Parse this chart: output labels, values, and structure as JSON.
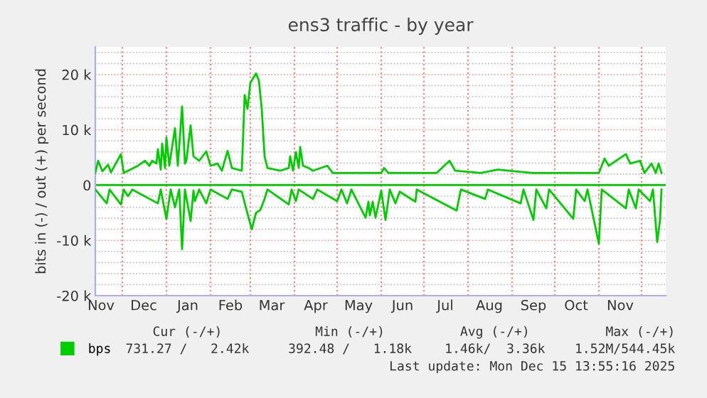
{
  "chart_data": {
    "type": "line",
    "title": "ens3 traffic - by year",
    "ylabel": "bits in (-) / out (+) per second",
    "xlim": [
      "2024-11-12",
      "2025-12-18"
    ],
    "ylim": [
      -20000,
      25000
    ],
    "xticks": [
      {
        "value": "2024-11-16",
        "label": "Nov"
      },
      {
        "value": "2024-12-16",
        "label": "Dec"
      },
      {
        "value": "2025-01-16",
        "label": "Jan"
      },
      {
        "value": "2025-02-15",
        "label": "Feb"
      },
      {
        "value": "2025-03-16",
        "label": "Mar"
      },
      {
        "value": "2025-04-16",
        "label": "Apr"
      },
      {
        "value": "2025-05-16",
        "label": "May"
      },
      {
        "value": "2025-06-16",
        "label": "Jun"
      },
      {
        "value": "2025-07-16",
        "label": "Jul"
      },
      {
        "value": "2025-08-16",
        "label": "Aug"
      },
      {
        "value": "2025-09-16",
        "label": "Sep"
      },
      {
        "value": "2025-10-16",
        "label": "Oct"
      },
      {
        "value": "2025-11-16",
        "label": "Nov"
      }
    ],
    "yticks": [
      {
        "value": -20000,
        "label": "-20 k"
      },
      {
        "value": -18000,
        "label": null
      },
      {
        "value": -16000,
        "label": null
      },
      {
        "value": -14000,
        "label": null
      },
      {
        "value": -12000,
        "label": null
      },
      {
        "value": -10000,
        "label": "-10 k"
      },
      {
        "value": -8000,
        "label": null
      },
      {
        "value": -6000,
        "label": null
      },
      {
        "value": -4000,
        "label": null
      },
      {
        "value": -2000,
        "label": null
      },
      0,
      {
        "value": 2000,
        "label": null
      },
      {
        "value": 4000,
        "label": null
      },
      {
        "value": 6000,
        "label": null
      },
      {
        "value": 8000,
        "label": null
      },
      {
        "value": 10000,
        "label": "10 k"
      },
      {
        "value": 12000,
        "label": null
      },
      {
        "value": 14000,
        "label": null
      },
      {
        "value": 16000,
        "label": null
      },
      {
        "value": 18000,
        "label": null
      },
      {
        "value": 20000,
        "label": "20 k"
      },
      {
        "value": 22000,
        "label": null
      },
      {
        "value": 24000,
        "label": null
      }
    ],
    "grid": "y",
    "legend": "bottom left",
    "marker": "none",
    "line_style": "solid",
    "ref_lines": [
      {
        "axis": "y",
        "value": 0,
        "color": "#00cc00",
        "line_style": "solid"
      },
      {
        "axis": "x",
        "value": "2024-12-01",
        "color": "#ff8080",
        "line_style": "dotted"
      },
      {
        "axis": "x",
        "value": "2025-01-01",
        "color": "#ff8080",
        "line_style": "dotted"
      },
      {
        "axis": "x",
        "value": "2025-02-01",
        "color": "#ff8080",
        "line_style": "dotted"
      },
      {
        "axis": "x",
        "value": "2025-03-01",
        "color": "#ff8080",
        "line_style": "dotted"
      },
      {
        "axis": "x",
        "value": "2025-04-01",
        "color": "#ff8080",
        "line_style": "dotted"
      },
      {
        "axis": "x",
        "value": "2025-05-01",
        "color": "#ff8080",
        "line_style": "dotted"
      },
      {
        "axis": "x",
        "value": "2025-06-01",
        "color": "#ff8080",
        "line_style": "dotted"
      },
      {
        "axis": "x",
        "value": "2025-07-01",
        "color": "#ff8080",
        "line_style": "dotted"
      },
      {
        "axis": "x",
        "value": "2025-08-01",
        "color": "#ff8080",
        "line_style": "dotted"
      },
      {
        "axis": "x",
        "value": "2025-09-01",
        "color": "#ff8080",
        "line_style": "dotted"
      },
      {
        "axis": "x",
        "value": "2025-10-01",
        "color": "#ff8080",
        "line_style": "dotted"
      },
      {
        "axis": "x",
        "value": "2025-11-01",
        "color": "#ff8080",
        "line_style": "dotted"
      },
      {
        "axis": "x",
        "value": "2025-12-01",
        "color": "#ff8080",
        "line_style": "dotted"
      }
    ],
    "annotations": [
      "Cur (-/+)",
      "Min (-/+)",
      "Avg (-/+)",
      "Max (-/+)",
      "731.27 /   2.42k",
      "392.48 /   1.18k",
      "1.46k/  3.36k",
      "1.52M/544.45k",
      "Last update: Mon Dec 15 13:55:16 2025"
    ],
    "series": [
      {
        "name": "bps",
        "color": "#00cc00",
        "x": [
          "2024-11-12",
          "2024-11-14",
          "2024-11-17",
          "2024-11-21",
          "2024-11-23",
          "2024-11-30",
          "2024-12-02",
          "2024-12-12",
          "2024-12-17",
          "2024-12-20",
          "2024-12-22",
          "2024-12-25",
          "2024-12-26",
          "2024-12-28",
          "2024-12-29",
          "2024-12-31",
          "2025-01-01",
          "2025-01-03",
          "2025-01-07",
          "2025-01-09",
          "2025-01-12",
          "2025-01-14",
          "2025-01-15",
          "2025-01-18",
          "2025-01-20",
          "2025-01-24",
          "2025-01-29",
          "2025-02-01",
          "2025-02-06",
          "2025-02-09",
          "2025-02-13",
          "2025-02-16",
          "2025-02-23",
          "2025-02-25",
          "2025-02-27",
          "2025-03-01",
          "2025-03-05",
          "2025-03-07",
          "2025-03-09",
          "2025-03-11",
          "2025-03-13",
          "2025-03-22",
          "2025-03-28",
          "2025-03-29",
          "2025-03-31",
          "2025-04-02",
          "2025-04-04",
          "2025-04-05",
          "2025-04-07",
          "2025-04-11",
          "2025-04-14",
          "2025-04-24",
          "2025-04-28",
          "2025-05-14",
          "2025-06-01",
          "2025-06-03",
          "2025-06-06",
          "2025-07-10",
          "2025-07-19",
          "2025-07-23",
          "2025-08-10",
          "2025-08-22",
          "2025-09-15",
          "2025-10-15",
          "2025-11-01",
          "2025-11-05",
          "2025-11-08",
          "2025-11-20",
          "2025-11-23",
          "2025-11-30",
          "2025-12-03",
          "2025-12-08",
          "2025-12-11",
          "2025-12-13",
          "2025-12-15"
        ],
        "values": [
          2200,
          4400,
          2500,
          3700,
          2300,
          5600,
          2200,
          3500,
          4400,
          3500,
          4400,
          3900,
          6500,
          2800,
          7500,
          3100,
          8600,
          3500,
          10300,
          3500,
          14200,
          3900,
          4400,
          10800,
          5200,
          4400,
          6100,
          3500,
          3900,
          2600,
          6200,
          3100,
          2600,
          16300,
          13800,
          18500,
          20200,
          18900,
          13800,
          5200,
          3100,
          2600,
          3100,
          5200,
          2600,
          6000,
          3100,
          6900,
          3500,
          3100,
          2600,
          3500,
          2200,
          2200,
          2200,
          3100,
          2200,
          2200,
          4400,
          2600,
          2200,
          2800,
          2200,
          2200,
          2200,
          4800,
          3500,
          5600,
          3900,
          4400,
          2200,
          3900,
          2200,
          3900,
          2200
        ]
      },
      {
        "color": "#00cc00",
        "x": [
          "2024-11-12",
          "2024-11-20",
          "2024-11-22",
          "2024-11-30",
          "2024-12-02",
          "2024-12-05",
          "2024-12-08",
          "2024-12-26",
          "2024-12-28",
          "2025-01-01",
          "2025-01-04",
          "2025-01-07",
          "2025-01-10",
          "2025-01-12",
          "2025-01-14",
          "2025-01-18",
          "2025-01-20",
          "2025-01-21",
          "2025-01-24",
          "2025-01-29",
          "2025-02-01",
          "2025-02-13",
          "2025-02-16",
          "2025-02-23",
          "2025-02-26",
          "2025-03-02",
          "2025-03-05",
          "2025-03-08",
          "2025-03-11",
          "2025-03-13",
          "2025-03-28",
          "2025-03-30",
          "2025-04-02",
          "2025-04-04",
          "2025-04-14",
          "2025-04-17",
          "2025-05-01",
          "2025-05-04",
          "2025-05-08",
          "2025-05-11",
          "2025-05-21",
          "2025-05-23",
          "2025-05-24",
          "2025-05-26",
          "2025-05-28",
          "2025-06-01",
          "2025-06-04",
          "2025-06-07",
          "2025-06-11",
          "2025-06-14",
          "2025-06-25",
          "2025-06-26",
          "2025-07-24",
          "2025-07-27",
          "2025-08-13",
          "2025-08-15",
          "2025-09-07",
          "2025-09-09",
          "2025-09-16",
          "2025-09-18",
          "2025-09-25",
          "2025-09-27",
          "2025-10-14",
          "2025-10-16",
          "2025-10-22",
          "2025-10-24",
          "2025-11-01",
          "2025-11-03",
          "2025-11-20",
          "2025-11-22",
          "2025-11-27",
          "2025-11-29",
          "2025-12-07",
          "2025-12-09",
          "2025-12-12",
          "2025-12-14",
          "2025-12-15"
        ],
        "values": [
          -800,
          -3300,
          -800,
          -3500,
          -800,
          -2000,
          -800,
          -3300,
          -800,
          -6100,
          -800,
          -4000,
          -800,
          -11600,
          -800,
          -6500,
          -1000,
          -2900,
          -800,
          -3300,
          -800,
          -2500,
          -800,
          -1200,
          -4200,
          -8000,
          -5000,
          -4500,
          -2500,
          -800,
          -3500,
          -800,
          -2900,
          -800,
          -2500,
          -800,
          -2900,
          -800,
          -3300,
          -800,
          -5900,
          -3000,
          -5500,
          -3000,
          -5900,
          -1000,
          -6300,
          -800,
          -3300,
          -1200,
          -3000,
          -800,
          -4600,
          -800,
          -2500,
          -800,
          -3300,
          -800,
          -6300,
          -800,
          -4200,
          -800,
          -6100,
          -800,
          -2900,
          -800,
          -10600,
          -800,
          -4200,
          -800,
          -4200,
          -800,
          -2900,
          -800,
          -10300,
          -6300,
          -800
        ]
      }
    ]
  }
}
